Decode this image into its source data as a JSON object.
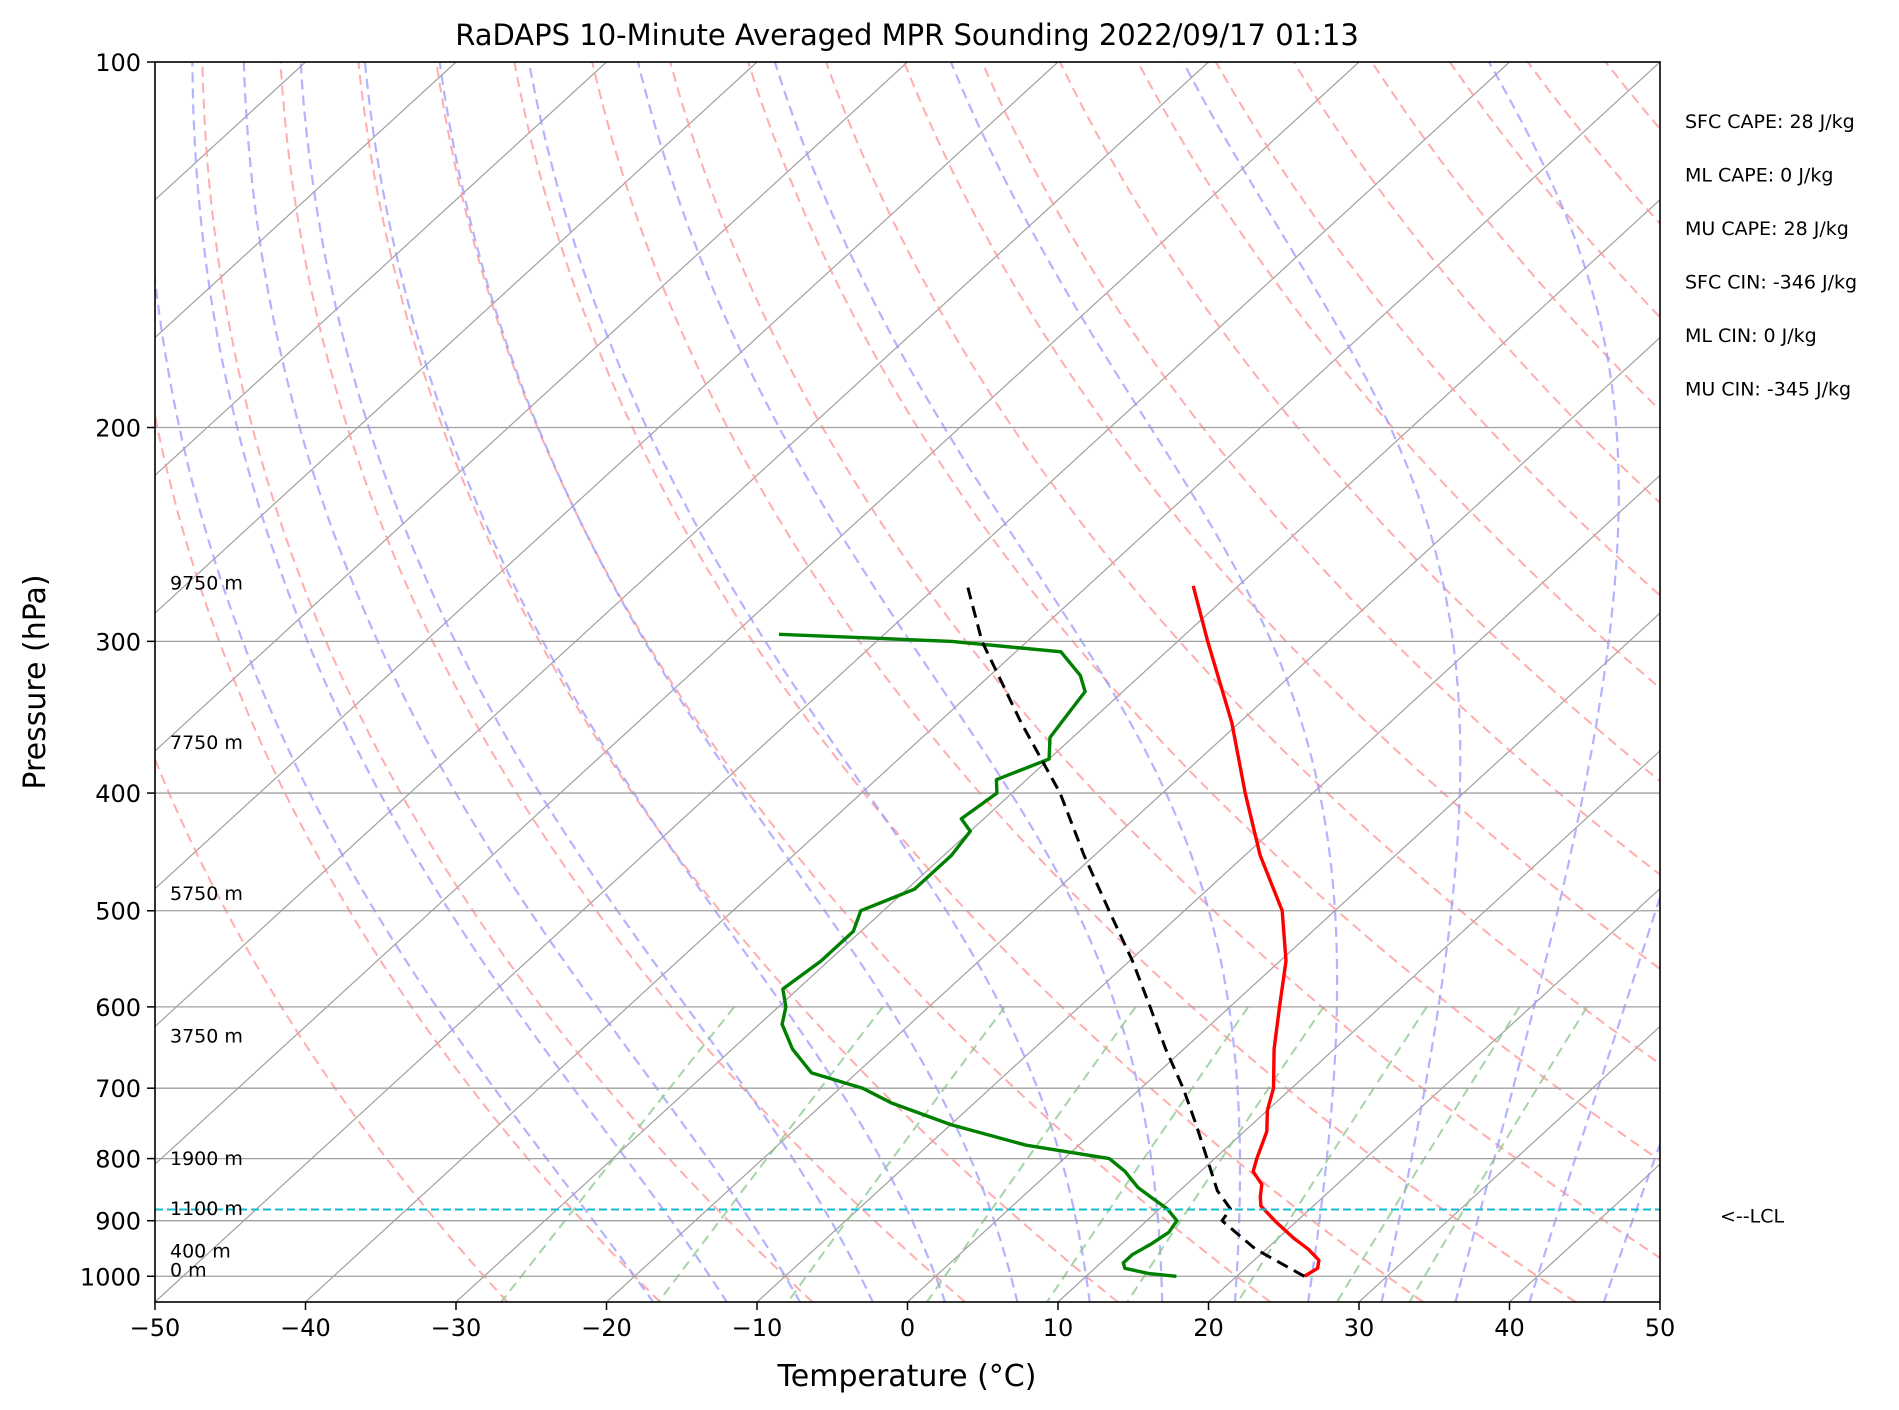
{
  "chart_data": {
    "type": "line",
    "title": "RaDAPS 10-Minute Averaged MPR Sounding 2022/09/17 01:13",
    "xlabel": "Temperature (°C)",
    "ylabel": "Pressure (hPa)",
    "xlim": [
      -50,
      50
    ],
    "ylim": [
      1050,
      100
    ],
    "y_scale": "log",
    "skew": "skew-T log-P",
    "x_ticks": [
      -50,
      -40,
      -30,
      -20,
      -10,
      0,
      10,
      20,
      30,
      40,
      50
    ],
    "x_tick_labels": [
      "−50",
      "−40",
      "−30",
      "−20",
      "−10",
      "0",
      "10",
      "20",
      "30",
      "40",
      "50"
    ],
    "y_ticks": [
      100,
      200,
      300,
      400,
      500,
      600,
      700,
      800,
      900,
      1000
    ],
    "y_tick_labels": [
      "100",
      "200",
      "300",
      "400",
      "500",
      "600",
      "700",
      "800",
      "900",
      "1000"
    ],
    "grid": true,
    "colors": {
      "temperature": "#ff0000",
      "dewpoint": "#008000",
      "parcel": "#000000",
      "lcl": "#17becf",
      "dry_adiabat": "#ff9999",
      "moist_adiabat": "#9999ff",
      "mixing_ratio": "#8fc98f",
      "isotherm": "#a0a0a0"
    },
    "series": [
      {
        "key": "temperature",
        "points": [
          [
            1000,
            24.5
          ],
          [
            985,
            24.8
          ],
          [
            970,
            24.3
          ],
          [
            950,
            22.8
          ],
          [
            930,
            21.0
          ],
          [
            900,
            18.5
          ],
          [
            875,
            16.5
          ],
          [
            860,
            15.8
          ],
          [
            840,
            15.0
          ],
          [
            820,
            13.5
          ],
          [
            800,
            12.8
          ],
          [
            760,
            11.5
          ],
          [
            730,
            10.0
          ],
          [
            700,
            8.8
          ],
          [
            650,
            6.0
          ],
          [
            600,
            3.3
          ],
          [
            550,
            0.4
          ],
          [
            500,
            -3.5
          ],
          [
            450,
            -9.0
          ],
          [
            400,
            -14.5
          ],
          [
            350,
            -20.5
          ],
          [
            300,
            -28.0
          ],
          [
            270,
            -33.0
          ]
        ]
      },
      {
        "key": "dewpoint",
        "points": [
          [
            1000,
            16.0
          ],
          [
            995,
            14.0
          ],
          [
            985,
            12.0
          ],
          [
            975,
            11.5
          ],
          [
            960,
            11.5
          ],
          [
            940,
            12.0
          ],
          [
            920,
            12.3
          ],
          [
            900,
            12.0
          ],
          [
            880,
            10.5
          ],
          [
            860,
            8.5
          ],
          [
            845,
            7.0
          ],
          [
            830,
            5.8
          ],
          [
            820,
            5.0
          ],
          [
            800,
            3.0
          ],
          [
            780,
            -3.5
          ],
          [
            750,
            -10.0
          ],
          [
            720,
            -15.5
          ],
          [
            700,
            -18.5
          ],
          [
            680,
            -23.0
          ],
          [
            650,
            -26.0
          ],
          [
            620,
            -28.5
          ],
          [
            600,
            -29.5
          ],
          [
            580,
            -31.0
          ],
          [
            550,
            -30.5
          ],
          [
            520,
            -30.5
          ],
          [
            500,
            -31.5
          ],
          [
            480,
            -29.5
          ],
          [
            450,
            -29.5
          ],
          [
            430,
            -30.0
          ],
          [
            420,
            -31.5
          ],
          [
            400,
            -31.0
          ],
          [
            390,
            -32.0
          ],
          [
            375,
            -30.0
          ],
          [
            360,
            -31.5
          ],
          [
            345,
            -32.0
          ],
          [
            330,
            -32.5
          ],
          [
            320,
            -34.0
          ],
          [
            306,
            -37.0
          ],
          [
            300,
            -45.0
          ],
          [
            296,
            -57.0
          ]
        ]
      },
      {
        "key": "parcel",
        "points": [
          [
            1000,
            24.5
          ],
          [
            950,
            19.3
          ],
          [
            900,
            15.0
          ],
          [
            880,
            14.7
          ],
          [
            850,
            12.5
          ],
          [
            800,
            9.5
          ],
          [
            750,
            6.3
          ],
          [
            700,
            2.8
          ],
          [
            650,
            -1.2
          ],
          [
            600,
            -5.3
          ],
          [
            550,
            -9.8
          ],
          [
            500,
            -15.0
          ],
          [
            450,
            -20.7
          ],
          [
            400,
            -26.8
          ],
          [
            350,
            -34.5
          ],
          [
            300,
            -43.0
          ],
          [
            270,
            -48.0
          ]
        ]
      }
    ],
    "lcl_pressure": 881,
    "lcl_label": "<--LCL",
    "height_labels": [
      {
        "label": "9750 m",
        "p": 272
      },
      {
        "label": "7750 m",
        "p": 368
      },
      {
        "label": "5750 m",
        "p": 490
      },
      {
        "label": "3750 m",
        "p": 642
      },
      {
        "label": "1900 m",
        "p": 810
      },
      {
        "label": "1100 m",
        "p": 890
      },
      {
        "label": "400 m",
        "p": 965
      },
      {
        "label": "0 m",
        "p": 1000
      }
    ],
    "annotations": [
      "SFC CAPE: 28 J/kg",
      "ML CAPE: 0 J/kg",
      "MU CAPE: 28 J/kg",
      "SFC CIN: -346 J/kg",
      "ML CIN: 0 J/kg",
      "MU CIN: -345 J/kg"
    ]
  }
}
